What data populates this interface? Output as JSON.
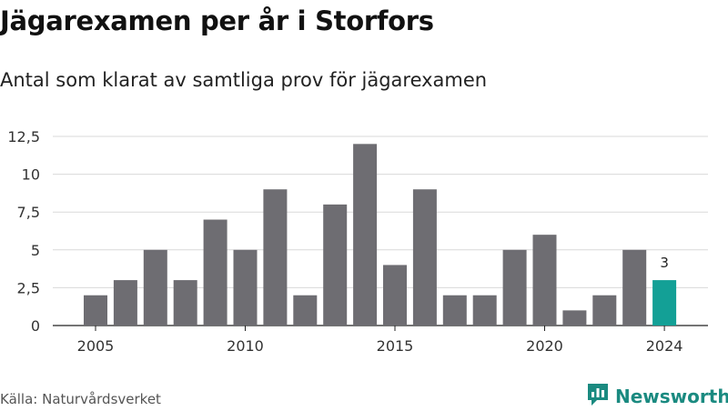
{
  "title": "Jägarexamen per år i Storfors",
  "subtitle": "Antal som klarat av samtliga prov för jägarexamen",
  "source": "Källa: Naturvårdsverket",
  "brand": {
    "name": "Newsworthy",
    "icon": "newsworthy-logo-icon"
  },
  "colors": {
    "bar": "#6e6d72",
    "highlight": "#13a096",
    "grid": "#d9d9d9",
    "brand": "#1a8a80"
  },
  "chart_data": {
    "type": "bar",
    "title": "Jägarexamen per år i Storfors",
    "subtitle": "Antal som klarat av samtliga prov för jägarexamen",
    "xlabel": "",
    "ylabel": "",
    "categories": [
      2005,
      2006,
      2007,
      2008,
      2009,
      2010,
      2011,
      2012,
      2013,
      2014,
      2015,
      2016,
      2017,
      2018,
      2019,
      2020,
      2021,
      2022,
      2023,
      2024
    ],
    "values": [
      2,
      3,
      5,
      3,
      7,
      5,
      9,
      2,
      8,
      12,
      4,
      9,
      2,
      2,
      5,
      6,
      1,
      2,
      5,
      3
    ],
    "highlight": {
      "category": 2024,
      "label": "3"
    },
    "ylim": [
      0,
      12.5
    ],
    "y_ticks": [
      "0",
      "2,5",
      "5",
      "7,5",
      "10",
      "12,5"
    ],
    "y_tick_values": [
      0,
      2.5,
      5,
      7.5,
      10,
      12.5
    ],
    "x_ticks": [
      "2005",
      "2010",
      "2015",
      "2020",
      "2024"
    ],
    "grid": true
  }
}
